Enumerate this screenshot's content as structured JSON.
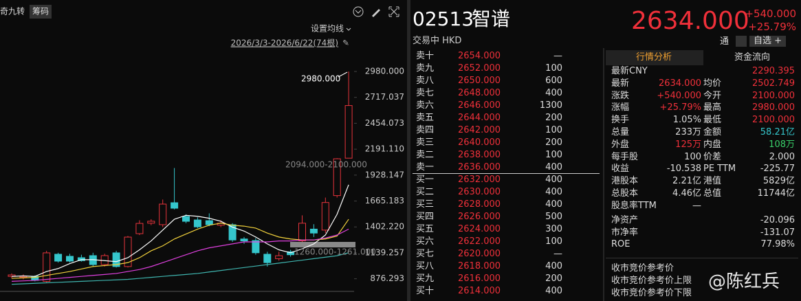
{
  "toolbar": {
    "indicator": "奇九转",
    "chips_button": "筹码",
    "ma_settings": "设置均线",
    "range": "2026/3/3-2026/6/22(74根)"
  },
  "chart_data": {
    "type": "candlestick",
    "open": [
      900,
      890,
      900,
      850,
      1125,
      1104,
      1090,
      1111,
      1020,
      1139,
      1000,
      1334,
      1440,
      1425,
      1648,
      1508,
      1473,
      1466,
      1420,
      1425,
      1280,
      1264,
      1125,
      1080,
      1150,
      1261,
      1380,
      1370,
      1720,
      2100
    ],
    "high": [
      930,
      920,
      910,
      1160,
      1140,
      1130,
      1120,
      1140,
      1130,
      1160,
      1310,
      1470,
      1480,
      1680,
      2000,
      1530,
      1500,
      1540,
      1470,
      1440,
      1300,
      1290,
      1150,
      1150,
      1170,
      1520,
      1430,
      1700,
      2100,
      2980
    ],
    "low": [
      880,
      870,
      850,
      840,
      1040,
      1040,
      1050,
      1000,
      1000,
      990,
      990,
      1320,
      1420,
      1400,
      1580,
      1440,
      1390,
      1410,
      1400,
      1250,
      1230,
      1120,
      1000,
      1060,
      1100,
      1250,
      1300,
      1340,
      1700,
      2100
    ],
    "close": [
      915,
      900,
      860,
      1139,
      1055,
      1055,
      1060,
      1020,
      1111,
      1000,
      1299,
      1438,
      1460,
      1634,
      1592,
      1459,
      1403,
      1425,
      1440,
      1270,
      1260,
      1140,
      1040,
      1110,
      1120,
      1440,
      1340,
      1650,
      2094,
      2634
    ],
    "series": [
      {
        "color": "#ffffff",
        "values": [
          900,
          905,
          900,
          950,
          980,
          1030,
          1070,
          1070,
          1060,
          1050,
          1090,
          1170,
          1260,
          1370,
          1480,
          1520,
          1510,
          1490,
          1460,
          1400,
          1360,
          1300,
          1230,
          1170,
          1140,
          1180,
          1230,
          1320,
          1530,
          1830
        ]
      },
      {
        "color": "#f2d23c",
        "values": [
          880,
          885,
          890,
          910,
          930,
          950,
          975,
          1000,
          1010,
          1020,
          1040,
          1090,
          1160,
          1210,
          1280,
          1330,
          1380,
          1420,
          1440,
          1420,
          1410,
          1390,
          1340,
          1300,
          1280,
          1270,
          1270,
          1280,
          1310,
          1480
        ]
      },
      {
        "color": "#e040e0",
        "values": [
          850,
          855,
          860,
          870,
          880,
          890,
          900,
          910,
          920,
          930,
          950,
          970,
          1000,
          1040,
          1080,
          1120,
          1160,
          1190,
          1210,
          1230,
          1250,
          1250,
          1250,
          1260,
          1260,
          1270,
          1270,
          1290,
          1320,
          1380
        ]
      },
      {
        "color": "#3fb6b0",
        "values": [
          820,
          825,
          830,
          835,
          840,
          845,
          850,
          855,
          860,
          865,
          870,
          880,
          890,
          900,
          910,
          920,
          930,
          945,
          960,
          975,
          990,
          1005,
          1020,
          1035,
          1050,
          1065,
          1080,
          1095,
          1110,
          1140
        ]
      }
    ],
    "up_color": "#e8343c",
    "down_color": "#35c6cc",
    "ylim": [
      706.2,
      3147.4
    ],
    "yticks": [
      876.293,
      1139.257,
      {
        "value": 1402.22,
        "label": "1402.220"
      },
      1665.183,
      1928.147,
      {
        "value": 2191.11,
        "label": "2191.110"
      },
      2454.073,
      2717.037,
      {
        "value": 2980,
        "label": "2980.000"
      }
    ],
    "annotations": {
      "high": "2980.000",
      "gap_upper": "2094.000-2100.000",
      "gap_lower": "1260.000-1261.000"
    }
  },
  "quote": {
    "code": "02513",
    "name": "智谱",
    "status": "交易中 HKD",
    "price": "2634.000",
    "change": "+540.000",
    "change_pct": "+25.79%",
    "connect": "通",
    "watchlist": "自选 +"
  },
  "order_book": {
    "asks": [
      [
        "卖十",
        "2654.000",
        "—"
      ],
      [
        "卖九",
        "2652.000",
        "100"
      ],
      [
        "卖八",
        "2650.000",
        "600"
      ],
      [
        "卖七",
        "2648.000",
        "400"
      ],
      [
        "卖六",
        "2646.000",
        "1300"
      ],
      [
        "卖五",
        "2644.000",
        "200"
      ],
      [
        "卖四",
        "2642.000",
        "100"
      ],
      [
        "卖三",
        "2640.000",
        "200"
      ],
      [
        "卖二",
        "2638.000",
        "100"
      ],
      [
        "卖一",
        "2636.000",
        "400"
      ]
    ],
    "bids": [
      [
        "买一",
        "2632.000",
        "400"
      ],
      [
        "买二",
        "2630.000",
        "400"
      ],
      [
        "买三",
        "2628.000",
        "400"
      ],
      [
        "买四",
        "2626.000",
        "500"
      ],
      [
        "买五",
        "2624.000",
        "300"
      ],
      [
        "买六",
        "2622.000",
        "100"
      ],
      [
        "买七",
        "2620.000",
        "—"
      ],
      [
        "买八",
        "2618.000",
        "400"
      ],
      [
        "买九",
        "2616.000",
        "200"
      ],
      [
        "买十",
        "2614.000",
        "400"
      ]
    ]
  },
  "tabs": [
    "行情分析",
    "资金流向"
  ],
  "stats": [
    [
      "最新CNY",
      "2290.395"
    ],
    [
      "最新",
      "2634.000",
      "均价",
      "2502.749"
    ],
    [
      "涨跌",
      "+540.000",
      "今开",
      "2100.000"
    ],
    [
      "涨幅",
      "+25.79%",
      "最高",
      "2980.000"
    ],
    [
      "换手",
      "1.05%",
      "最低",
      "2100.000"
    ],
    [
      "总量",
      "233万",
      "金额",
      "58.21亿"
    ],
    [
      "外盘",
      "125万",
      "内盘",
      "108万"
    ],
    [
      "每手股",
      "100",
      "价差",
      "2.000"
    ],
    [
      "收益",
      "-10.538",
      "PE TTM",
      "-225.77"
    ],
    [
      "港股本",
      "2.21亿",
      "港值",
      "5829亿"
    ],
    [
      "总股本",
      "4.46亿",
      "总值",
      "11744亿"
    ],
    [
      "股息率TTM",
      "—"
    ]
  ],
  "fundamentals": [
    [
      "净资产",
      "-20.096"
    ],
    [
      "市净率",
      "-131.07"
    ],
    [
      "ROE",
      "77.98%"
    ]
  ],
  "auction": [
    "收市竞价参考价",
    "收市竞价参考价上限",
    "收市竞价参考价下限"
  ],
  "watermark": "@陈红兵"
}
